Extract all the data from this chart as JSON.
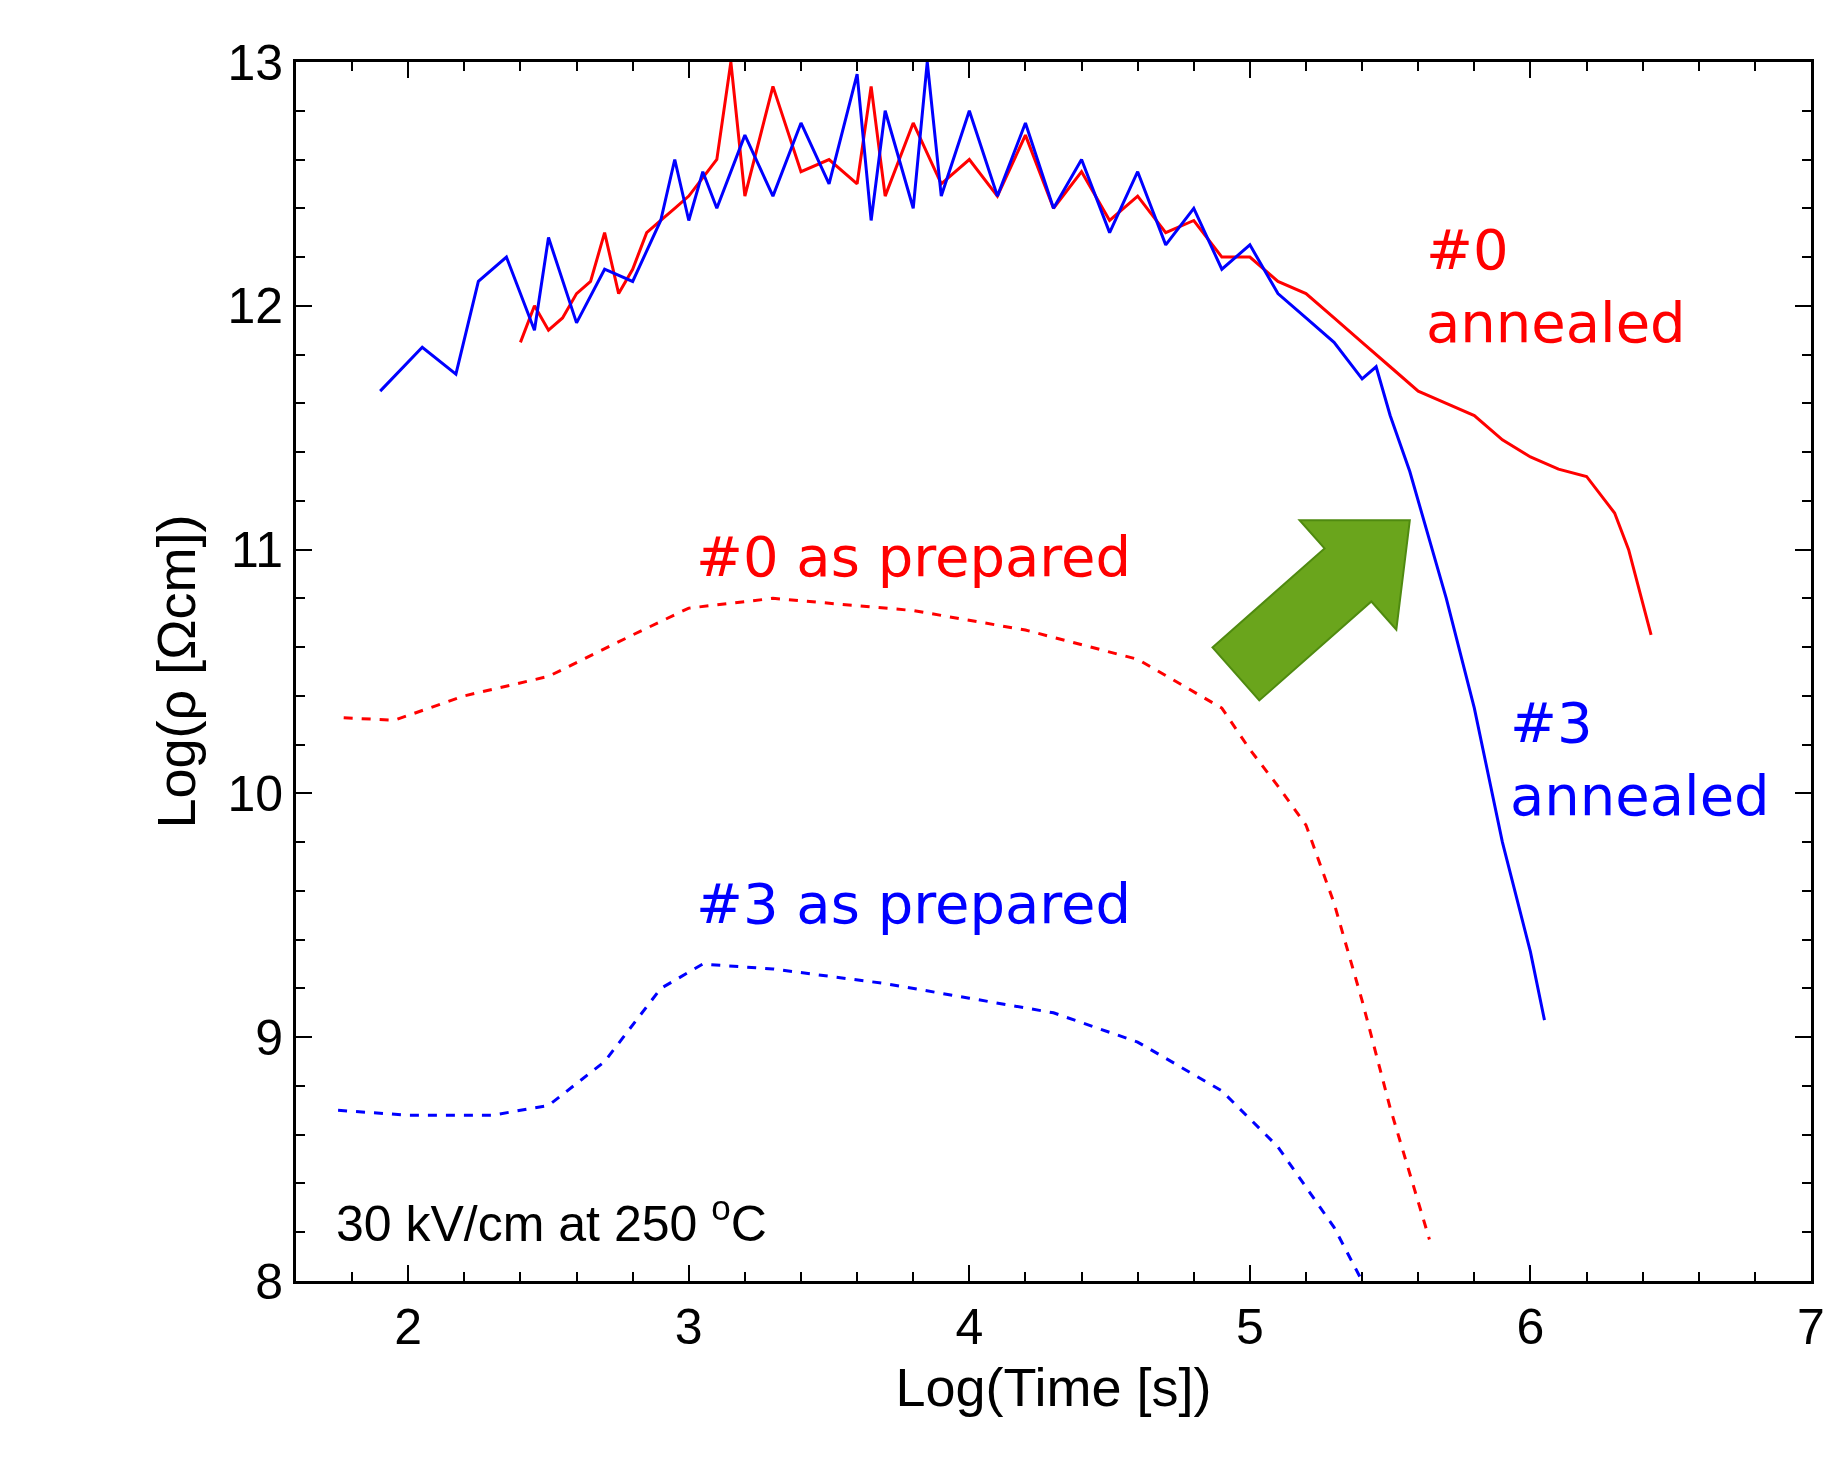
{
  "chart_data": {
    "type": "line",
    "xlabel": "Log(Time [s])",
    "ylabel": "Log(ρ [Ωcm])",
    "xlim": [
      1.6,
      7
    ],
    "ylim": [
      8,
      13
    ],
    "xticks": [
      {
        "value": 1.8,
        "label": null
      },
      2,
      {
        "value": 2.2,
        "label": null
      },
      {
        "value": 2.4,
        "label": null
      },
      {
        "value": 2.6,
        "label": null
      },
      {
        "value": 2.8,
        "label": null
      },
      3,
      {
        "value": 3.2,
        "label": null
      },
      {
        "value": 3.4,
        "label": null
      },
      {
        "value": 3.6,
        "label": null
      },
      {
        "value": 3.8,
        "label": null
      },
      4,
      {
        "value": 4.2,
        "label": null
      },
      {
        "value": 4.4,
        "label": null
      },
      {
        "value": 4.6,
        "label": null
      },
      {
        "value": 4.8,
        "label": null
      },
      5,
      {
        "value": 5.2,
        "label": null
      },
      {
        "value": 5.4,
        "label": null
      },
      {
        "value": 5.6,
        "label": null
      },
      {
        "value": 5.8,
        "label": null
      },
      6,
      {
        "value": 6.2,
        "label": null
      },
      {
        "value": 6.4,
        "label": null
      },
      {
        "value": 6.6,
        "label": null
      },
      {
        "value": 6.8,
        "label": null
      },
      7
    ],
    "yticks": [
      8,
      {
        "value": 8.2,
        "label": null
      },
      {
        "value": 8.4,
        "label": null
      },
      {
        "value": 8.6,
        "label": null
      },
      {
        "value": 8.8,
        "label": null
      },
      9,
      {
        "value": 9.2,
        "label": null
      },
      {
        "value": 9.4,
        "label": null
      },
      {
        "value": 9.6,
        "label": null
      },
      {
        "value": 9.8,
        "label": null
      },
      10,
      {
        "value": 10.2,
        "label": null
      },
      {
        "value": 10.4,
        "label": null
      },
      {
        "value": 10.6,
        "label": null
      },
      {
        "value": 10.8,
        "label": null
      },
      11,
      {
        "value": 11.2,
        "label": null
      },
      {
        "value": 11.4,
        "label": null
      },
      {
        "value": 11.6,
        "label": null
      },
      {
        "value": 11.8,
        "label": null
      },
      12,
      {
        "value": 12.2,
        "label": null
      },
      {
        "value": 12.4,
        "label": null
      },
      {
        "value": 12.6,
        "label": null
      },
      {
        "value": 12.8,
        "label": null
      },
      13
    ],
    "legend": false,
    "marker": "none",
    "annotations": [
      "30 kV/cm at 250 $^{o}$C"
    ],
    "series": [
      {
        "name": "#0 annealed",
        "color": "#ff0000",
        "line_style": "solid",
        "x": [
          2.4,
          2.45,
          2.5,
          2.55,
          2.6,
          2.65,
          2.7,
          2.75,
          2.8,
          2.85,
          2.9,
          2.95,
          3.0,
          3.1,
          3.15,
          3.2,
          3.3,
          3.4,
          3.5,
          3.6,
          3.65,
          3.7,
          3.8,
          3.9,
          4.0,
          4.1,
          4.2,
          4.3,
          4.4,
          4.5,
          4.6,
          4.7,
          4.8,
          4.9,
          5.0,
          5.1,
          5.2,
          5.3,
          5.4,
          5.5,
          5.6,
          5.7,
          5.8,
          5.9,
          6.0,
          6.1,
          6.2,
          6.3,
          6.35,
          6.43
        ],
        "values": [
          11.85,
          12.0,
          11.9,
          11.95,
          12.05,
          12.1,
          12.3,
          12.05,
          12.15,
          12.3,
          12.35,
          12.4,
          12.45,
          12.6,
          13.0,
          12.45,
          12.9,
          12.55,
          12.6,
          12.5,
          12.9,
          12.45,
          12.75,
          12.5,
          12.6,
          12.45,
          12.7,
          12.4,
          12.55,
          12.35,
          12.45,
          12.3,
          12.35,
          12.2,
          12.2,
          12.1,
          12.05,
          11.95,
          11.85,
          11.75,
          11.65,
          11.6,
          11.55,
          11.45,
          11.38,
          11.33,
          11.3,
          11.15,
          11.0,
          10.65
        ]
      },
      {
        "name": "#3 annealed",
        "color": "#0000ff",
        "line_style": "solid",
        "x": [
          1.9,
          2.05,
          2.17,
          2.25,
          2.35,
          2.45,
          2.5,
          2.6,
          2.7,
          2.8,
          2.9,
          2.95,
          3.0,
          3.05,
          3.1,
          3.2,
          3.3,
          3.4,
          3.5,
          3.6,
          3.65,
          3.7,
          3.8,
          3.85,
          3.9,
          4.0,
          4.1,
          4.2,
          4.3,
          4.4,
          4.5,
          4.6,
          4.7,
          4.8,
          4.9,
          5.0,
          5.1,
          5.2,
          5.3,
          5.4,
          5.45,
          5.5,
          5.57,
          5.65,
          5.7,
          5.8,
          5.9,
          6.0,
          6.05
        ],
        "values": [
          11.65,
          11.83,
          11.72,
          12.1,
          12.2,
          11.9,
          12.28,
          11.93,
          12.15,
          12.1,
          12.35,
          12.6,
          12.35,
          12.55,
          12.4,
          12.7,
          12.45,
          12.75,
          12.5,
          12.95,
          12.35,
          12.8,
          12.4,
          13.0,
          12.45,
          12.8,
          12.45,
          12.75,
          12.4,
          12.6,
          12.3,
          12.55,
          12.25,
          12.4,
          12.15,
          12.25,
          12.05,
          11.95,
          11.85,
          11.7,
          11.75,
          11.55,
          11.32,
          11.0,
          10.8,
          10.35,
          9.8,
          9.35,
          9.07
        ]
      },
      {
        "name": "#0 as prepared",
        "color": "#ff0000",
        "line_style": "dashed",
        "x": [
          1.77,
          1.95,
          2.2,
          2.5,
          2.8,
          3.0,
          3.3,
          3.8,
          4.2,
          4.6,
          4.9,
          5.0,
          5.1,
          5.2,
          5.3,
          5.4,
          5.5,
          5.64
        ],
        "values": [
          10.31,
          10.3,
          10.4,
          10.48,
          10.65,
          10.76,
          10.8,
          10.75,
          10.67,
          10.55,
          10.35,
          10.18,
          10.03,
          9.87,
          9.55,
          9.15,
          8.71,
          8.17
        ]
      },
      {
        "name": "#3 as prepared",
        "color": "#0000ff",
        "line_style": "dashed",
        "x": [
          1.75,
          2.0,
          2.3,
          2.5,
          2.7,
          2.9,
          3.05,
          3.3,
          3.7,
          4.0,
          4.3,
          4.6,
          4.9,
          5.1,
          5.3,
          5.4
        ],
        "values": [
          8.7,
          8.68,
          8.68,
          8.72,
          8.9,
          9.2,
          9.3,
          9.28,
          9.22,
          9.16,
          9.1,
          8.98,
          8.78,
          8.55,
          8.22,
          8.0
        ]
      }
    ]
  }
}
